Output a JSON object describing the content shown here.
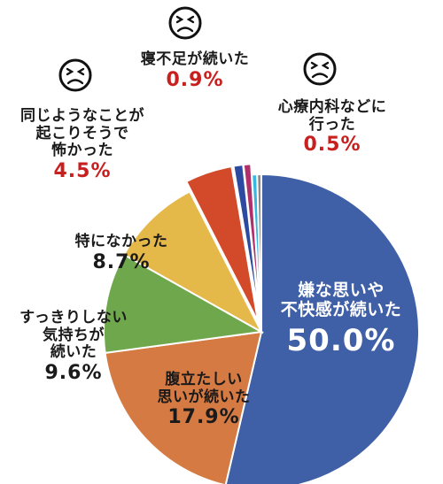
{
  "chart_data": {
    "type": "pie",
    "start_angle_deg": 0,
    "slices": [
      {
        "label": "嫌な思いや不快感が続いた",
        "label_lines": [
          "嫌な思いや",
          "不快感が続いた"
        ],
        "value": 50.0,
        "display": "50.0%",
        "color": "#3f5fa6"
      },
      {
        "label": "腹立たしい思いが続いた",
        "label_lines": [
          "腹立たしい",
          "思いが続いた"
        ],
        "value": 17.9,
        "display": "17.9%",
        "color": "#d47a42"
      },
      {
        "label": "すっきりしない気持ちが続いた",
        "label_lines": [
          "すっきりしない",
          "気持ちが",
          "続いた"
        ],
        "value": 9.6,
        "display": "9.6%",
        "color": "#6fa84c"
      },
      {
        "label": "特になかった",
        "label_lines": [
          "特になかった"
        ],
        "value": 8.7,
        "display": "8.7%",
        "color": "#e5b84a"
      },
      {
        "label": "同じようなことが起こりそうで怖かった",
        "label_lines": [
          "同じようなことが",
          "起こりそうで",
          "怖かった"
        ],
        "value": 4.5,
        "display": "4.5%",
        "color": "#d24a2a",
        "exploded": true
      },
      {
        "label": "寝不足が続いた",
        "label_lines": [
          "寝不足が続いた"
        ],
        "value": 0.9,
        "display": "0.9%",
        "color": "#2c4aa0",
        "exploded": true
      },
      {
        "label": "",
        "value": 0.7,
        "color": "#b0306a",
        "exploded": true
      },
      {
        "label": "心療内科などに行った",
        "label_lines": [
          "心療内科などに",
          "行った"
        ],
        "value": 0.5,
        "display": "0.5%",
        "color": "#39b8df"
      },
      {
        "label": "",
        "value": 0.4,
        "color": "#8a8a8a"
      }
    ]
  },
  "icons": {
    "face": "frown-face-icon"
  }
}
